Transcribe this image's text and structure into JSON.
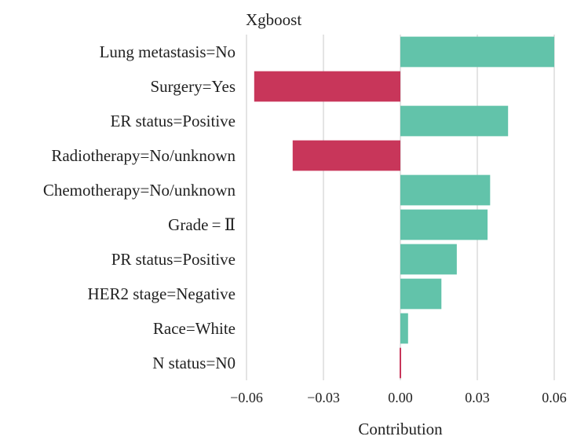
{
  "chart_data": {
    "type": "bar",
    "orientation": "horizontal",
    "title": "Xgboost",
    "xlabel": "Contribution",
    "ylabel": "",
    "xlim": [
      -0.06,
      0.06
    ],
    "xticks": [
      "−0.06",
      "−0.03",
      "0.00",
      "0.03",
      "0.06"
    ],
    "xtick_values": [
      -0.06,
      -0.03,
      0.0,
      0.03,
      0.06
    ],
    "grid": "vertical",
    "colors": {
      "positive": "#62c3aa",
      "negative": "#c8365a",
      "grid": "#c8c8c8",
      "text": "#222222"
    },
    "categories": [
      "Lung metastasis=No",
      "Surgery=Yes",
      "ER status=Positive",
      "Radiotherapy=No/unknown",
      "Chemotherapy=No/unknown",
      "Grade = Ⅱ",
      "PR status=Positive",
      "HER2 stage=Negative",
      "Race=White",
      "N status=N0"
    ],
    "values": [
      0.06,
      -0.057,
      0.042,
      -0.042,
      0.035,
      0.034,
      0.022,
      0.016,
      0.003,
      -0.0005
    ]
  }
}
